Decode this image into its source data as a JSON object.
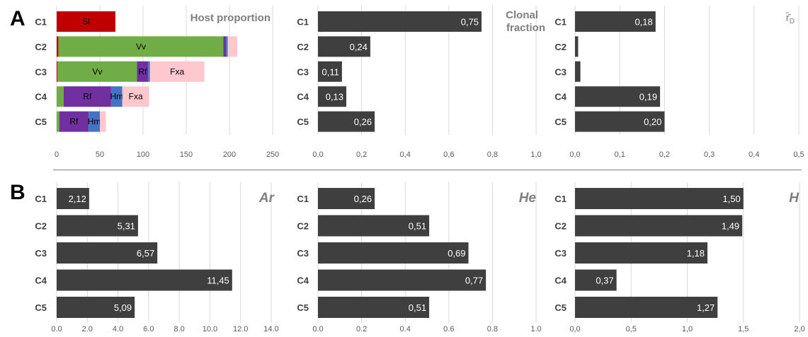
{
  "panels": [
    {
      "letter": "A"
    },
    {
      "letter": "B"
    }
  ],
  "colors": {
    "bar": "#3f3f3f",
    "grid": "#d9d9d9",
    "tick_text": "#595959",
    "category_text": "#404040",
    "bar_label": "#ffffff",
    "title_text": "#7f7f7f",
    "host_Sl": "#c00000",
    "host_Vv": "#70ad47",
    "host_Rf": "#7030a0",
    "host_Hm": "#4472c4",
    "host_Fxa": "#ffc7ce"
  },
  "chart_data": [
    {
      "id": "host-proportion",
      "type": "bar",
      "orientation": "horizontal",
      "stacked": true,
      "title": "Host proportion",
      "categories": [
        "C1",
        "C2",
        "C3",
        "C4",
        "C5"
      ],
      "xlim": [
        0,
        250
      ],
      "ticks": [
        0,
        50,
        100,
        150,
        200,
        250
      ],
      "tick_labels": [
        "0",
        "50",
        "100",
        "150",
        "200",
        "250"
      ],
      "series": [
        {
          "name": "Sl",
          "color": "#c00000",
          "values": [
            68,
            2,
            1,
            0,
            0
          ],
          "labels": [
            "Sl",
            "",
            "",
            "",
            ""
          ]
        },
        {
          "name": "Vv",
          "color": "#70ad47",
          "values": [
            0,
            191,
            92,
            8,
            3
          ],
          "labels": [
            "",
            "Vv",
            "Vv",
            "",
            ""
          ]
        },
        {
          "name": "Rf",
          "color": "#7030a0",
          "values": [
            0,
            3,
            13,
            55,
            34
          ],
          "labels": [
            "",
            "",
            "Rf",
            "Rf",
            "Rf"
          ]
        },
        {
          "name": "Hm",
          "color": "#4472c4",
          "values": [
            0,
            2,
            2,
            13,
            13
          ],
          "labels": [
            "",
            "",
            "",
            "Hm",
            "Hm"
          ]
        },
        {
          "name": "Fxa",
          "color": "#ffc7ce",
          "values": [
            0,
            11,
            63,
            31,
            7
          ],
          "labels": [
            "",
            "",
            "Fxa",
            "Fxa",
            ""
          ]
        }
      ],
      "grid": true
    },
    {
      "id": "clonal-fraction",
      "type": "bar",
      "orientation": "horizontal",
      "title": "Clonal fraction",
      "categories": [
        "C1",
        "C2",
        "C3",
        "C4",
        "C5"
      ],
      "values": [
        0.75,
        0.24,
        0.11,
        0.13,
        0.26
      ],
      "labels": [
        "0,75",
        "0,24",
        "0,11",
        "0,13",
        "0,26"
      ],
      "xlim": [
        0,
        1.0
      ],
      "ticks": [
        0,
        0.2,
        0.4,
        0.6,
        0.8,
        1.0
      ],
      "tick_labels": [
        "0,0",
        "0,2",
        "0,4",
        "0,6",
        "0,8",
        "1,0"
      ],
      "grid": true
    },
    {
      "id": "rd",
      "type": "bar",
      "orientation": "horizontal",
      "title": "r̄̄",
      "title_sub": "D",
      "categories": [
        "C1",
        "C2",
        "C3",
        "C4",
        "C5"
      ],
      "values": [
        0.18,
        0.007,
        0.012,
        0.19,
        0.2
      ],
      "labels": [
        "0,18",
        "",
        "",
        "0,19",
        "0,20"
      ],
      "xlim": [
        0,
        0.5
      ],
      "ticks": [
        0,
        0.1,
        0.2,
        0.3,
        0.4,
        0.5
      ],
      "tick_labels": [
        "0,0",
        "0,1",
        "0,2",
        "0,3",
        "0,4",
        "0,5"
      ],
      "grid": true
    },
    {
      "id": "ar",
      "type": "bar",
      "orientation": "horizontal",
      "title": "Ar",
      "categories": [
        "C1",
        "C2",
        "C3",
        "C4",
        "C5"
      ],
      "values": [
        2.12,
        5.31,
        6.57,
        11.45,
        5.09
      ],
      "labels": [
        "2,12",
        "5,31",
        "6,57",
        "11,45",
        "5,09"
      ],
      "xlim": [
        0,
        14
      ],
      "ticks": [
        0,
        2,
        4,
        6,
        8,
        10,
        12,
        14
      ],
      "tick_labels": [
        "0.0",
        "2.0",
        "4.0",
        "6.0",
        "8.0",
        "10.0",
        "12.0",
        "14.0"
      ],
      "grid": true
    },
    {
      "id": "he",
      "type": "bar",
      "orientation": "horizontal",
      "title": "He",
      "categories": [
        "C1",
        "C2",
        "C3",
        "C4",
        "C5"
      ],
      "values": [
        0.26,
        0.51,
        0.69,
        0.77,
        0.51
      ],
      "labels": [
        "0,26",
        "0,51",
        "0,69",
        "0,77",
        "0,51"
      ],
      "xlim": [
        0,
        1.0
      ],
      "ticks": [
        0,
        0.2,
        0.4,
        0.6,
        0.8,
        1.0
      ],
      "tick_labels": [
        "0.0",
        "0.2",
        "0.4",
        "0.6",
        "0.8",
        "1.0"
      ],
      "grid": true
    },
    {
      "id": "h",
      "type": "bar",
      "orientation": "horizontal",
      "title": "H",
      "categories": [
        "C1",
        "C2",
        "C3",
        "C4",
        "C5"
      ],
      "values": [
        1.5,
        1.49,
        1.18,
        0.37,
        1.27
      ],
      "labels": [
        "1,50",
        "1,49",
        "1,18",
        "0,37",
        "1,27"
      ],
      "xlim": [
        0,
        2.0
      ],
      "ticks": [
        0,
        0.5,
        1.0,
        1.5,
        2.0
      ],
      "tick_labels": [
        "0,0",
        "0,5",
        "1,0",
        "1,5",
        "2,0"
      ],
      "grid": true
    }
  ]
}
